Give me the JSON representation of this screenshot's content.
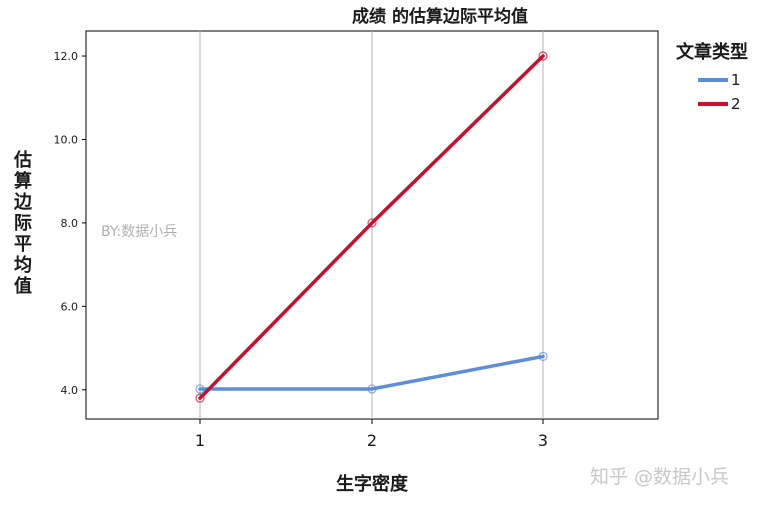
{
  "chart_data": {
    "type": "line",
    "title": "成绩 的估算边际平均值",
    "xlabel": "生字密度",
    "ylabel": "估算边际平均值",
    "categories": [
      "1",
      "2",
      "3"
    ],
    "yticks": [
      "4.0",
      "6.0",
      "8.0",
      "10.0",
      "12.0"
    ],
    "ylim": [
      3.3,
      12.6
    ],
    "grid": "vertical",
    "legend": {
      "title": "文章类型",
      "placement": "right"
    },
    "series": [
      {
        "name": "1",
        "values": [
          4.02,
          4.02,
          4.8
        ],
        "color": "#5b8fd9"
      },
      {
        "name": "2",
        "values": [
          3.8,
          8.0,
          12.0
        ],
        "color": "#c8102e"
      }
    ]
  },
  "watermark": "BY:数据小兵",
  "source_mark": "知乎 @数据小兵",
  "colors": {
    "axis": "#000000",
    "gridline": "#b5b5b5",
    "tick_text": "#1a1a1a"
  }
}
